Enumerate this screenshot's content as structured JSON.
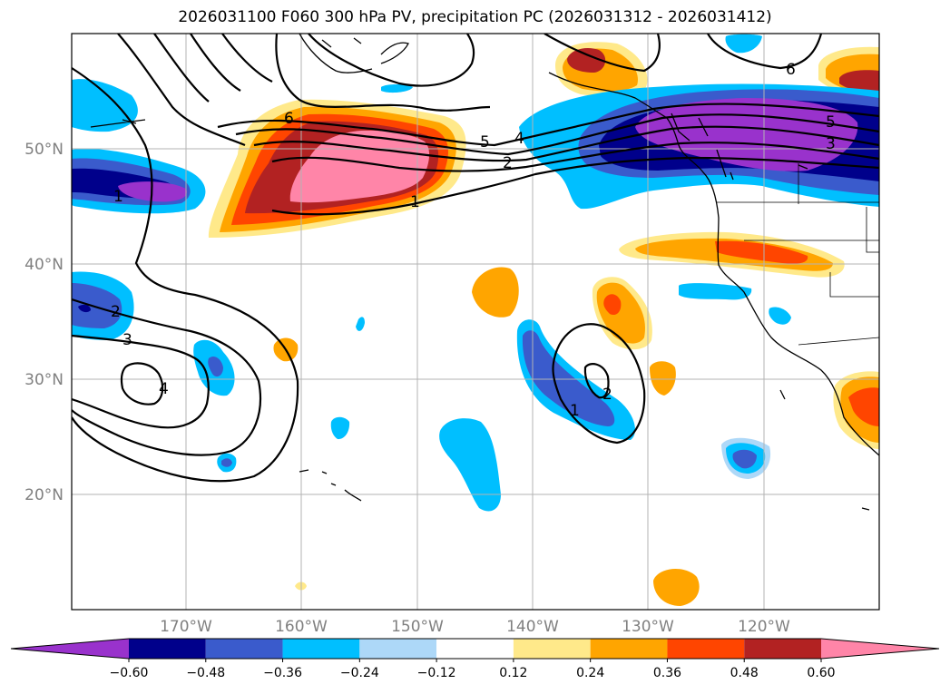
{
  "title": "2026031100 F060 300 hPa PV, precipitation PC (2026031312 - 2026031412)",
  "map": {
    "lon_range": [
      -180,
      -110
    ],
    "lat_range": [
      10,
      60
    ],
    "lon_ticks": [
      {
        "value": -170,
        "label": "170°W"
      },
      {
        "value": -160,
        "label": "160°W"
      },
      {
        "value": -150,
        "label": "150°W"
      },
      {
        "value": -140,
        "label": "140°W"
      },
      {
        "value": -130,
        "label": "130°W"
      },
      {
        "value": -120,
        "label": "120°W"
      }
    ],
    "lat_ticks": [
      {
        "value": 20,
        "label": "20°N"
      },
      {
        "value": 30,
        "label": "30°N"
      },
      {
        "value": 40,
        "label": "40°N"
      },
      {
        "value": 50,
        "label": "50°N"
      }
    ]
  },
  "pv_contour_labels": [
    "1",
    "2",
    "3",
    "4",
    "5",
    "6"
  ],
  "colorbar": {
    "levels": [
      -0.6,
      -0.48,
      -0.36,
      -0.24,
      -0.12,
      0.12,
      0.24,
      0.36,
      0.48,
      0.6
    ],
    "tick_labels": [
      "−0.60",
      "−0.48",
      "−0.36",
      "−0.24",
      "−0.12",
      "0.12",
      "0.24",
      "0.36",
      "0.48",
      "0.60"
    ],
    "colors": [
      "#9932cc",
      "#00008b",
      "#3a5bcc",
      "#00bfff",
      "#add8f8",
      "#ffffff",
      "#ffe98a",
      "#ffa500",
      "#ff4500",
      "#b22222",
      "#ff85a8"
    ]
  }
}
